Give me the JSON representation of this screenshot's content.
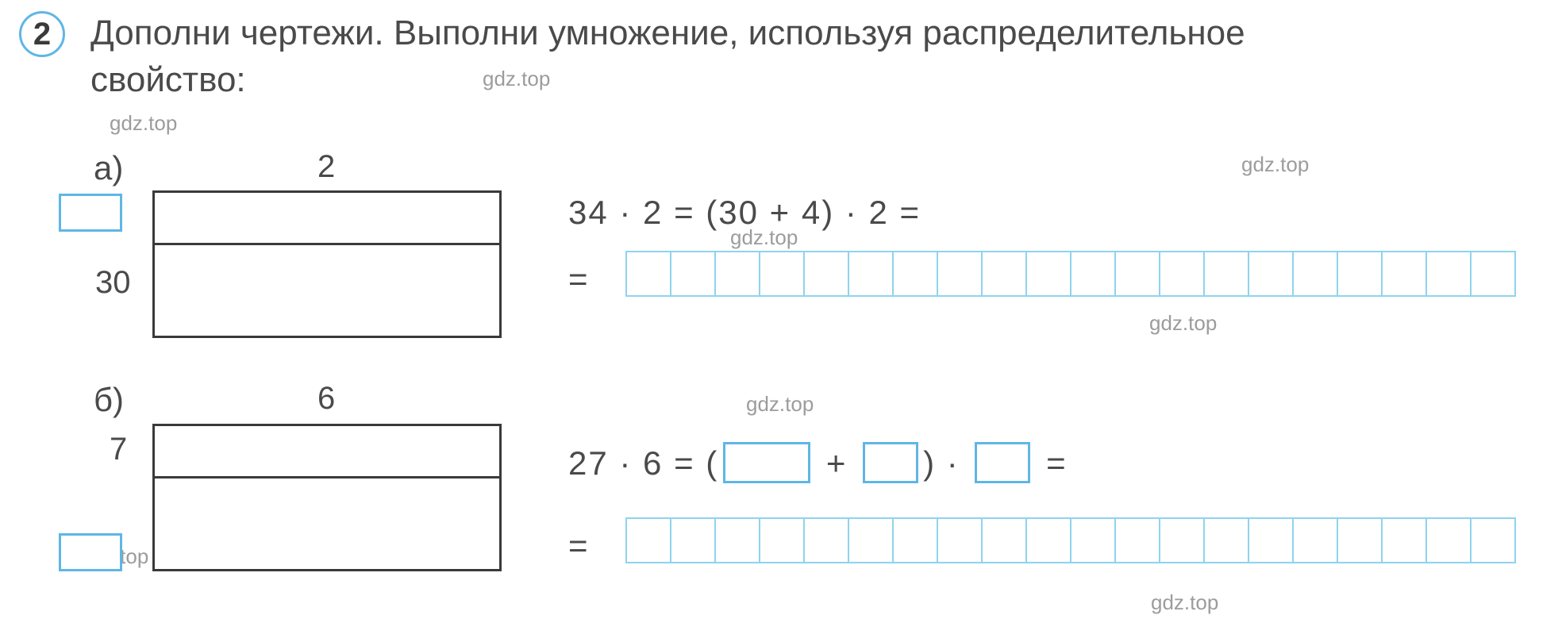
{
  "badge_number": "2",
  "instruction_line1": "Дополни чертежи. Выполни умножение, используя распределительное",
  "instruction_line2": "свойство:",
  "watermark": "gdz.top",
  "partA": {
    "label": "а)",
    "top_num": "2",
    "side_num": "30",
    "eq_line1_parts": [
      "34 · 2 = (30 + 4) · 2 ="
    ],
    "eq_sign": "=",
    "grid_cells": 20,
    "diagram": {
      "divider_pct": 35
    }
  },
  "partB": {
    "label": "б)",
    "top_num": "6",
    "side_num": "7",
    "eq_prefix": "27 · 6 = (",
    "eq_plus": " + ",
    "eq_paren_dot": ") · ",
    "eq_eq": " =",
    "eq_sign": "=",
    "box_widths": {
      "w1": 110,
      "w2": 70,
      "w3": 70
    },
    "grid_cells": 20,
    "diagram": {
      "divider_pct": 35
    }
  },
  "colors": {
    "badge_border": "#5fb6e6",
    "diagram_border": "#3a3a3a",
    "grid_border": "#8fd3ee",
    "text": "#4a4a4a",
    "wm": "#9c9c9c"
  }
}
